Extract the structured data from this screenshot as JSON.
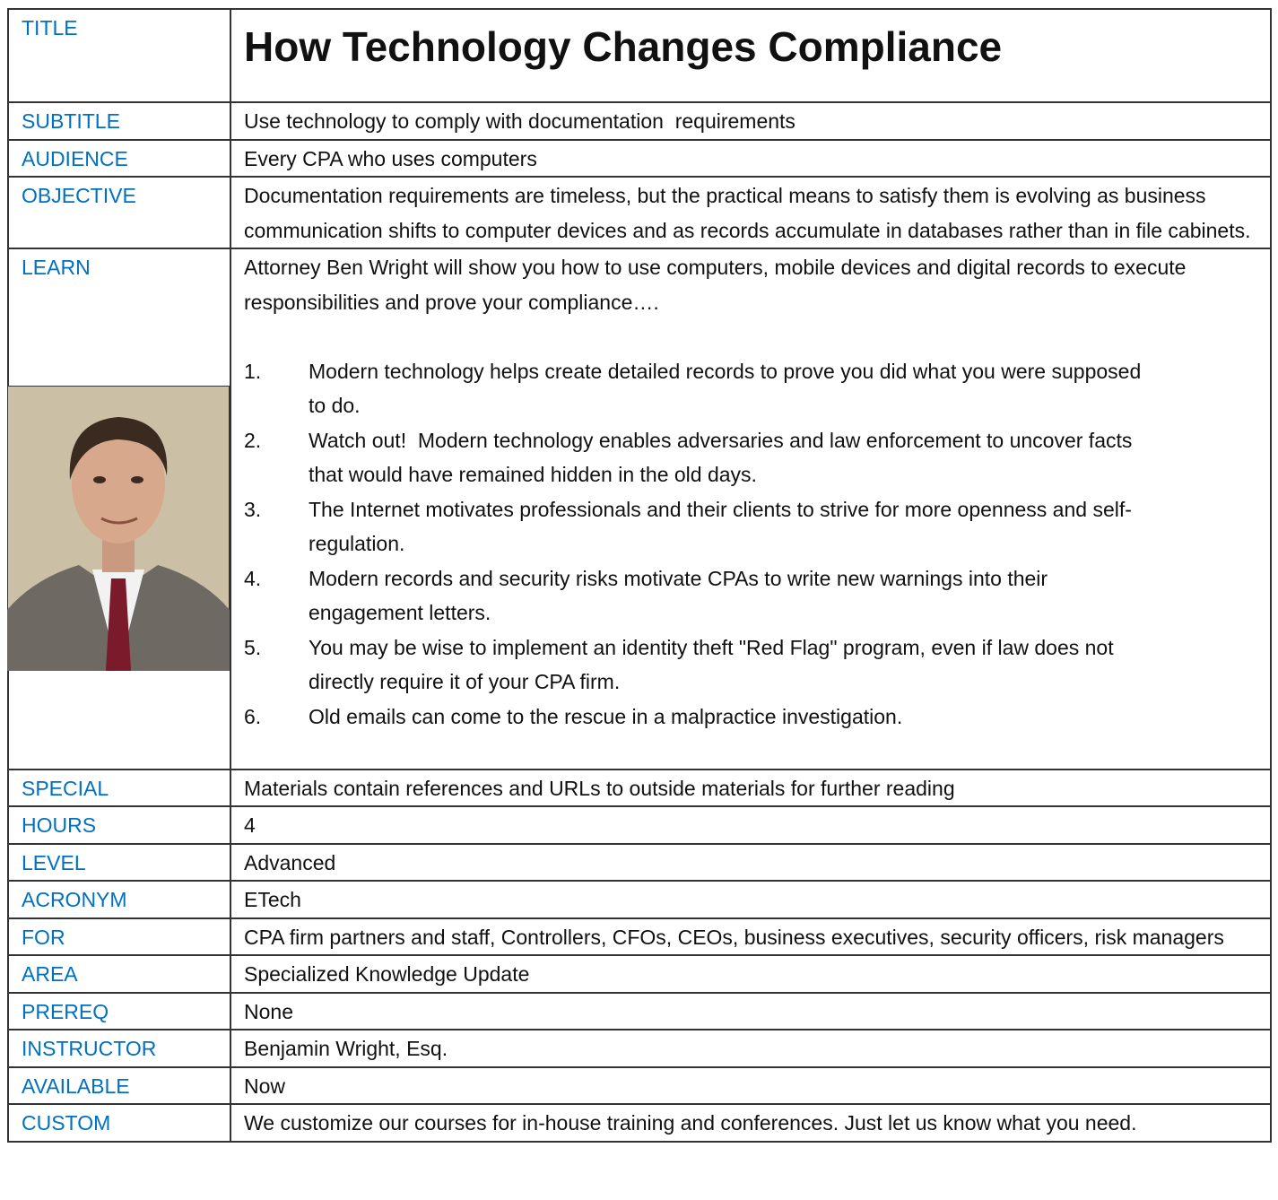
{
  "title": {
    "label": "TITLE",
    "text": "How Technology Changes Compliance"
  },
  "rows": [
    {
      "label": "SUBTITLE",
      "text": "Use technology to comply with documentation  requirements"
    },
    {
      "label": "AUDIENCE",
      "text": "Every CPA who uses computers"
    },
    {
      "label": "OBJECTIVE",
      "text": "Documentation requirements are timeless, but the practical means to satisfy them is evolving as business communication shifts to computer devices and as records accumulate in databases rather than in file cabinets."
    },
    {
      "label": "LEARN",
      "intro": "Attorney Ben Wright will show you how to use computers, mobile devices and digital records to execute responsibilities and prove your compliance….",
      "items": [
        {
          "number": "1.",
          "text": "Modern technology helps create detailed records to prove you did what you were supposed to do."
        },
        {
          "number": "2.",
          "text": "Watch out!  Modern technology enables adversaries and law enforcement to uncover facts that would have remained hidden in the old days."
        },
        {
          "number": "3.",
          "text": "The Internet motivates professionals and their clients to strive for more openness and self-regulation."
        },
        {
          "number": "4.",
          "text": "Modern records and security risks motivate CPAs to write new warnings into their engagement letters."
        },
        {
          "number": "5.",
          "text": "You may be wise to implement an identity theft \"Red Flag\" program, even if law does not directly require it of your CPA firm."
        },
        {
          "number": "6.",
          "text": "Old emails can come to the rescue in a malpractice investigation."
        }
      ]
    },
    {
      "label": "SPECIAL",
      "text": "Materials contain references and URLs to outside materials for further reading"
    },
    {
      "label": "HOURS",
      "text": "4"
    },
    {
      "label": "LEVEL",
      "text": "Advanced"
    },
    {
      "label": "ACRONYM",
      "text": "ETech"
    },
    {
      "label": "FOR",
      "text": "CPA firm partners and staff, Controllers, CFOs, CEOs, business executives, security officers, risk managers"
    },
    {
      "label": "AREA",
      "text": "Specialized Knowledge Update"
    },
    {
      "label": "PREREQ",
      "text": "None"
    },
    {
      "label": "INSTRUCTOR",
      "text": "Benjamin Wright, Esq."
    },
    {
      "label": "AVAILABLE",
      "text": "Now"
    },
    {
      "label": "CUSTOM",
      "text": "We customize our courses for in-house training and conferences. Just let us know what you need."
    }
  ]
}
